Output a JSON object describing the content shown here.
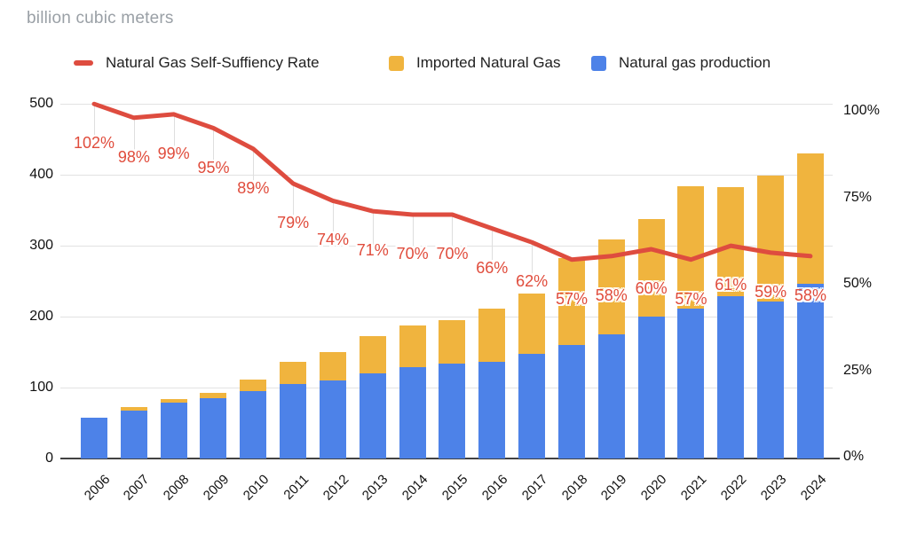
{
  "title": "billion cubic meters",
  "legend": {
    "items": [
      {
        "label": "Natural Gas Self-Suffiency Rate",
        "color": "#de4c3f",
        "shape": "dash"
      },
      {
        "label": "Imported Natural Gas",
        "color": "#f0b43e",
        "shape": "square"
      },
      {
        "label": "Natural gas production",
        "color": "#4d82e8",
        "shape": "square"
      }
    ]
  },
  "chart_data": {
    "type": "combo",
    "subtype": "stacked-bar-with-line",
    "categories": [
      "2006",
      "2007",
      "2008",
      "2009",
      "2010",
      "2011",
      "2012",
      "2013",
      "2014",
      "2015",
      "2016",
      "2017",
      "2018",
      "2019",
      "2020",
      "2021",
      "2022",
      "2023",
      "2024"
    ],
    "series": [
      {
        "name": "Natural gas production",
        "type": "bar",
        "axis": "left",
        "color": "#4d82e8",
        "values": [
          58,
          68,
          79,
          85,
          95,
          105,
          110,
          120,
          129,
          134,
          136,
          147,
          160,
          175,
          200,
          211,
          229,
          221,
          246
        ]
      },
      {
        "name": "Imported Natural Gas",
        "type": "bar",
        "axis": "left",
        "color": "#f0b43e",
        "stacked_on": "Natural gas production",
        "values": [
          0,
          4,
          5,
          8,
          16,
          31,
          40,
          52,
          58,
          61,
          75,
          86,
          123,
          134,
          138,
          173,
          153,
          178,
          184
        ]
      },
      {
        "name": "Natural Gas Self-Suffiency Rate",
        "type": "line",
        "axis": "right",
        "color": "#de4c3f",
        "values_percent": [
          102,
          98,
          99,
          95,
          89,
          79,
          74,
          71,
          70,
          70,
          66,
          62,
          57,
          58,
          60,
          57,
          61,
          59,
          58
        ],
        "point_labels": [
          "102%",
          "98%",
          "99%",
          "95%",
          "89%",
          "79%",
          "74%",
          "71%",
          "70%",
          "70%",
          "66%",
          "62%",
          "57%",
          "58%",
          "60%",
          "57%",
          "61%",
          "59%",
          "58%"
        ]
      }
    ],
    "left_axis": {
      "title": "billion cubic meters",
      "ticks": [
        "0",
        "100",
        "200",
        "300",
        "400",
        "500"
      ],
      "range": [
        0,
        500
      ],
      "grid": true
    },
    "right_axis": {
      "ticks": [
        "0%",
        "25%",
        "50%",
        "75%",
        "100%"
      ],
      "range_percent": [
        0,
        100
      ]
    },
    "legend_position": "top"
  },
  "colors": {
    "production_bar": "#4d82e8",
    "import_bar": "#f0b43e",
    "rate_line": "#de4c3f",
    "rate_label_text": "#e04c3c",
    "gridline": "#e2e2e2",
    "axis_line": "#424242",
    "title_text": "#9aa0a6",
    "axis_text": "#111111",
    "background": "#ffffff"
  }
}
